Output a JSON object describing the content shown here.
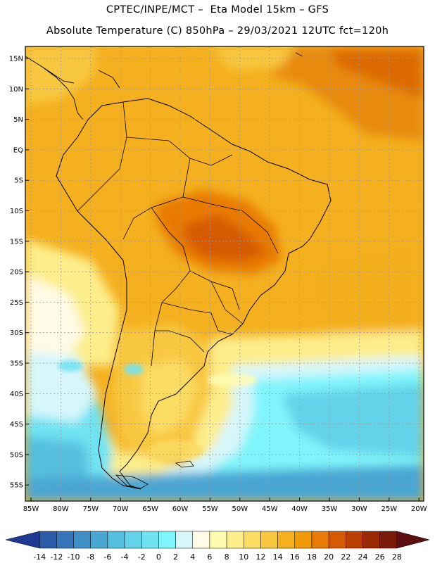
{
  "header": {
    "line1": "CPTEC/INPE/MCT –  Eta Model 15km – GFS",
    "line2": "Absolute Temperature (C) 850hPa – 29/03/2021 12UTC fct=120h"
  },
  "axes": {
    "lat_labels": [
      "15N",
      "10N",
      "5N",
      "EQ",
      "5S",
      "10S",
      "15S",
      "20S",
      "25S",
      "30S",
      "35S",
      "40S",
      "45S",
      "50S",
      "55S"
    ],
    "lon_labels": [
      "85W",
      "80W",
      "75W",
      "70W",
      "65W",
      "60W",
      "55W",
      "50W",
      "45W",
      "40W",
      "35W",
      "30W",
      "25W",
      "20W"
    ]
  },
  "colorbar": {
    "labels": [
      "-14",
      "-12",
      "-10",
      "-8",
      "-6",
      "-4",
      "-2",
      "0",
      "2",
      "4",
      "6",
      "8",
      "10",
      "12",
      "14",
      "16",
      "18",
      "20",
      "22",
      "24",
      "26",
      "28"
    ],
    "colors": [
      "#1f3a93",
      "#2a5aa8",
      "#3574b8",
      "#3f8fc6",
      "#4aa6d3",
      "#55bfdf",
      "#63d3ea",
      "#70e3f3",
      "#7ff5fb",
      "#d6f6fb",
      "#fffbe6",
      "#fffbb0",
      "#fdee8a",
      "#fbdc63",
      "#f8c73f",
      "#f4b01e",
      "#f09a0a",
      "#e87a05",
      "#d65a02",
      "#bb3e01",
      "#9a2803",
      "#7a1a08",
      "#5e0f10"
    ]
  },
  "colors": {
    "land_outline": "#000000",
    "grid": "#9a9a9a",
    "frame": "#000000"
  }
}
